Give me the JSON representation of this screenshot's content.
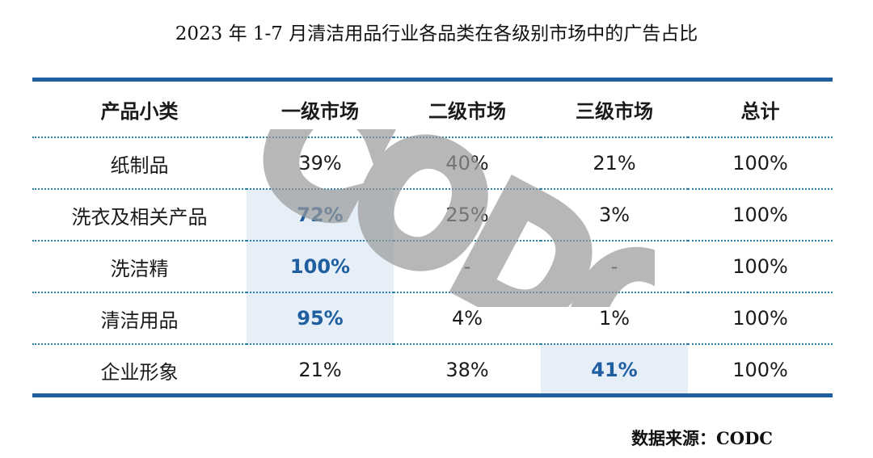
{
  "chart_data": {
    "type": "table",
    "title": "2023 年 1-7 月清洁用品行业各品类在各级别市场中的广告占比",
    "columns": [
      "产品小类",
      "一级市场",
      "二级市场",
      "三级市场",
      "总计"
    ],
    "rows": [
      {
        "category": "纸制品",
        "cells": [
          "39%",
          "40%",
          "21%",
          "100%"
        ],
        "highlight": [
          false,
          false,
          false,
          false
        ]
      },
      {
        "category": "洗衣及相关产品",
        "cells": [
          "72%",
          "25%",
          "3%",
          "100%"
        ],
        "highlight": [
          true,
          false,
          false,
          false
        ]
      },
      {
        "category": "洗洁精",
        "cells": [
          "100%",
          "-",
          "-",
          "100%"
        ],
        "highlight": [
          true,
          false,
          false,
          false
        ]
      },
      {
        "category": "清洁用品",
        "cells": [
          "95%",
          "4%",
          "1%",
          "100%"
        ],
        "highlight": [
          true,
          false,
          false,
          false
        ]
      },
      {
        "category": "企业形象",
        "cells": [
          "21%",
          "38%",
          "41%",
          "100%"
        ],
        "highlight": [
          false,
          false,
          true,
          false
        ]
      }
    ],
    "values_percent": [
      [
        39,
        40,
        21,
        100
      ],
      [
        72,
        25,
        3,
        100
      ],
      [
        100,
        null,
        null,
        100
      ],
      [
        95,
        4,
        1,
        100
      ],
      [
        21,
        38,
        41,
        100
      ]
    ],
    "colors": {
      "rule": "#1f5fa0",
      "highlight_bg": "#e6eff8",
      "highlight_text": "#1f5fa0",
      "dotted_line": "#2a7fa8"
    }
  },
  "watermark": "CODC",
  "source": "数据来源：CODC"
}
